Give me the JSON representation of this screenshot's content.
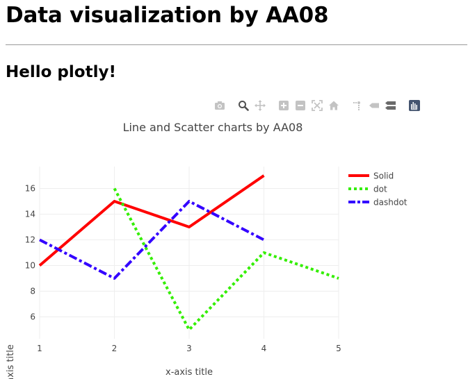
{
  "page": {
    "heading": "Data visualization by AA08",
    "subheading": "Hello plotly!"
  },
  "modebar": {
    "buttons": [
      {
        "name": "camera-icon",
        "title": "Download plot as a png"
      },
      {
        "name": "zoom-icon",
        "title": "Zoom"
      },
      {
        "name": "pan-icon",
        "title": "Pan"
      },
      {
        "name": "zoom-in-icon",
        "title": "Zoom in"
      },
      {
        "name": "zoom-out-icon",
        "title": "Zoom out"
      },
      {
        "name": "autoscale-icon",
        "title": "Autoscale"
      },
      {
        "name": "home-icon",
        "title": "Reset axes"
      },
      {
        "name": "spike-lines-icon",
        "title": "Toggle Spike Lines"
      },
      {
        "name": "hover-closest-icon",
        "title": "Show closest data on hover"
      },
      {
        "name": "hover-compare-icon",
        "title": "Compare data on hover"
      },
      {
        "name": "plotly-logo-icon",
        "title": "Produced with Plotly"
      }
    ],
    "icon_color": "#c3c3c3",
    "logo_color": "#44546f"
  },
  "chart_data": {
    "type": "line",
    "title": "Line and Scatter charts by AA08",
    "xlabel": "x-axis title",
    "ylabel": "y-axis title",
    "xlim": [
      1,
      5
    ],
    "ylim": [
      4.3,
      17.7
    ],
    "xticks": [
      1,
      2,
      3,
      4,
      5
    ],
    "yticks": [
      6,
      8,
      10,
      12,
      14,
      16
    ],
    "grid": true,
    "legend_position": "top-right",
    "series": [
      {
        "name": "Solid",
        "x": [
          1,
          2,
          3,
          4
        ],
        "y": [
          10,
          15,
          13,
          17
        ],
        "color": "#ff0000",
        "dash": "solid"
      },
      {
        "name": " dot",
        "x": [
          2,
          3,
          4,
          5
        ],
        "y": [
          16,
          5,
          11,
          9
        ],
        "color": "#33ee00",
        "dash": "dot"
      },
      {
        "name": "dashdot",
        "x": [
          1,
          2,
          3,
          4
        ],
        "y": [
          12,
          9,
          15,
          12
        ],
        "color": "#3300ff",
        "dash": "dashdot"
      }
    ]
  }
}
